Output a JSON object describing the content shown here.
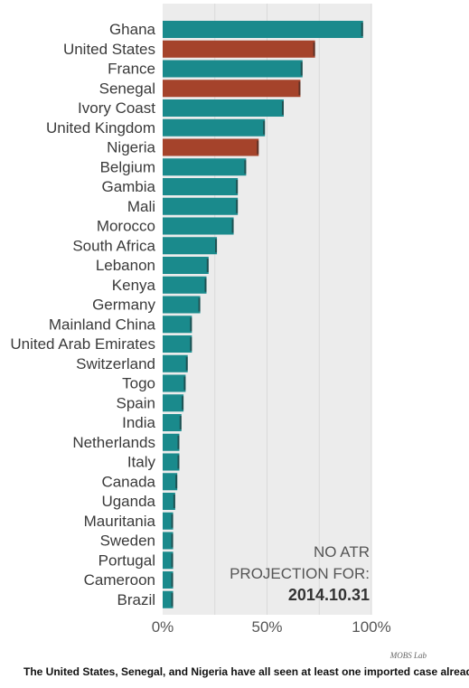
{
  "chart_data": {
    "type": "bar",
    "orientation": "horizontal",
    "categories": [
      "Ghana",
      "United States",
      "France",
      "Senegal",
      "Ivory Coast",
      "United Kingdom",
      "Nigeria",
      "Belgium",
      "Gambia",
      "Mali",
      "Morocco",
      "South Africa",
      "Lebanon",
      "Kenya",
      "Germany",
      "Mainland China",
      "United Arab Emirates",
      "Switzerland",
      "Togo",
      "Spain",
      "India",
      "Netherlands",
      "Italy",
      "Canada",
      "Uganda",
      "Mauritania",
      "Sweden",
      "Portugal",
      "Cameroon",
      "Brazil"
    ],
    "values": [
      96,
      73,
      67,
      66,
      58,
      49,
      46,
      40,
      36,
      36,
      34,
      26,
      22,
      21,
      18,
      14,
      14,
      12,
      11,
      10,
      9,
      8,
      8,
      7,
      6,
      5,
      5,
      5,
      5,
      5
    ],
    "highlighted": [
      "United States",
      "Senegal",
      "Nigeria"
    ],
    "colors": {
      "default": "#1a8a8c",
      "highlight": "#a5432b",
      "background_track": "#ececec",
      "grid": "#d9d9d9"
    },
    "xlim": [
      0,
      100
    ],
    "xticks": [
      "0%",
      "50%",
      "100%"
    ],
    "xtick_values": [
      0,
      50,
      100
    ],
    "grid": true
  },
  "annotation": {
    "line1": "NO ATR",
    "line2": "PROJECTION FOR:",
    "date": "2014.10.31"
  },
  "credit": "MOBS Lab",
  "caption": "The United States, Senegal, and Nigeria have all seen at least one imported case already."
}
